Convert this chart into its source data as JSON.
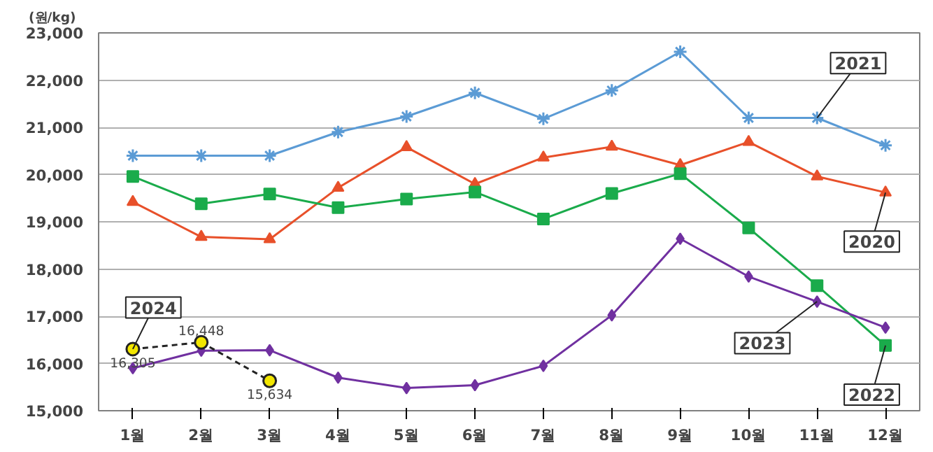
{
  "chart_data": {
    "type": "line",
    "ylabel": "(원/kg)",
    "categories": [
      "1월",
      "2월",
      "3월",
      "4월",
      "5월",
      "6월",
      "7월",
      "8월",
      "9월",
      "10월",
      "11월",
      "12월"
    ],
    "ylim": [
      15000,
      23000
    ],
    "yticks": [
      {
        "value": 15000,
        "label": "15,000"
      },
      {
        "value": 16000,
        "label": "16,000"
      },
      {
        "value": 17000,
        "label": "17,000"
      },
      {
        "value": 18000,
        "label": "18,000"
      },
      {
        "value": 19000,
        "label": "19,000"
      },
      {
        "value": 20000,
        "label": "20,000"
      },
      {
        "value": 21000,
        "label": "21,000"
      },
      {
        "value": 22000,
        "label": "22,000"
      },
      {
        "value": 23000,
        "label": "23,000"
      }
    ],
    "grid": "y",
    "series": [
      {
        "name": "2021",
        "color": "#5b9bd5",
        "marker": "cross",
        "values": [
          20400,
          20400,
          20400,
          20900,
          21230,
          21730,
          21180,
          21780,
          22600,
          21200,
          21200,
          20620
        ]
      },
      {
        "name": "2020",
        "color": "#e8502a",
        "marker": "triangle",
        "values": [
          19420,
          18680,
          18630,
          19720,
          20580,
          19800,
          20360,
          20590,
          20200,
          20690,
          19960,
          19620
        ]
      },
      {
        "name": "2022",
        "color": "#1aab4b",
        "marker": "square",
        "values": [
          19960,
          19380,
          19590,
          19300,
          19480,
          19630,
          19060,
          19600,
          20020,
          18870,
          17650,
          16380
        ]
      },
      {
        "name": "2023",
        "color": "#7030a0",
        "marker": "diamond",
        "values": [
          15900,
          16270,
          16280,
          15700,
          15480,
          15540,
          15950,
          17020,
          18640,
          17840,
          17310,
          16760
        ]
      },
      {
        "name": "2024",
        "color": "#f2e600",
        "marker": "circle",
        "line_style": "dashed",
        "values": [
          16305,
          16448,
          15634,
          null,
          null,
          null,
          null,
          null,
          null,
          null,
          null,
          null
        ],
        "value_labels": [
          "16,305",
          "16,448",
          "15,634",
          null,
          null,
          null,
          null,
          null,
          null,
          null,
          null,
          null
        ]
      }
    ]
  }
}
